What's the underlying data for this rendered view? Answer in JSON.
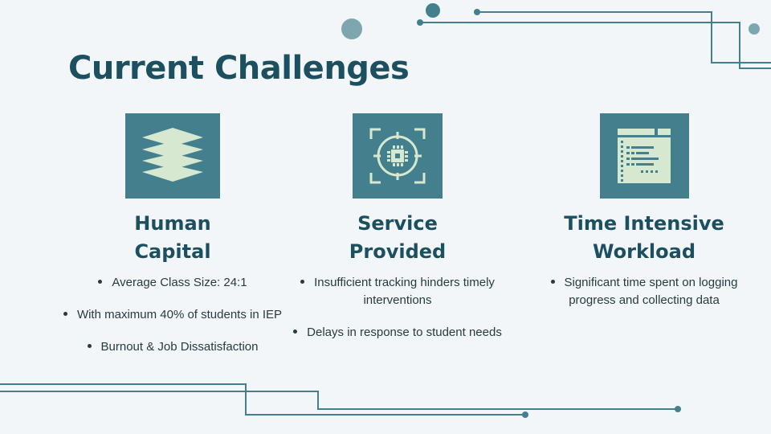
{
  "title": "Current Challenges",
  "colors": {
    "accent": "#447f8d",
    "heading": "#1c5060",
    "tile_art": "#d6e8cf",
    "background": "#f2f6f8"
  },
  "cards": [
    {
      "icon": "layers-icon",
      "heading_line1": "Human",
      "heading_line2": "Capital",
      "bullets": [
        "Average Class Size: 24:1",
        "With maximum 40% of students in IEP",
        "Burnout & Job Dissatisfaction"
      ]
    },
    {
      "icon": "target-crosshair-icon",
      "heading_line1": "Service",
      "heading_line2": "Provided",
      "bullets": [
        "Insufficient tracking hinders timely interventions",
        "Delays in response to student needs"
      ]
    },
    {
      "icon": "document-window-icon",
      "heading_line1": "Time Intensive",
      "heading_line2": "Workload",
      "bullets": [
        "Significant time spent on logging progress and collecting data"
      ]
    }
  ]
}
